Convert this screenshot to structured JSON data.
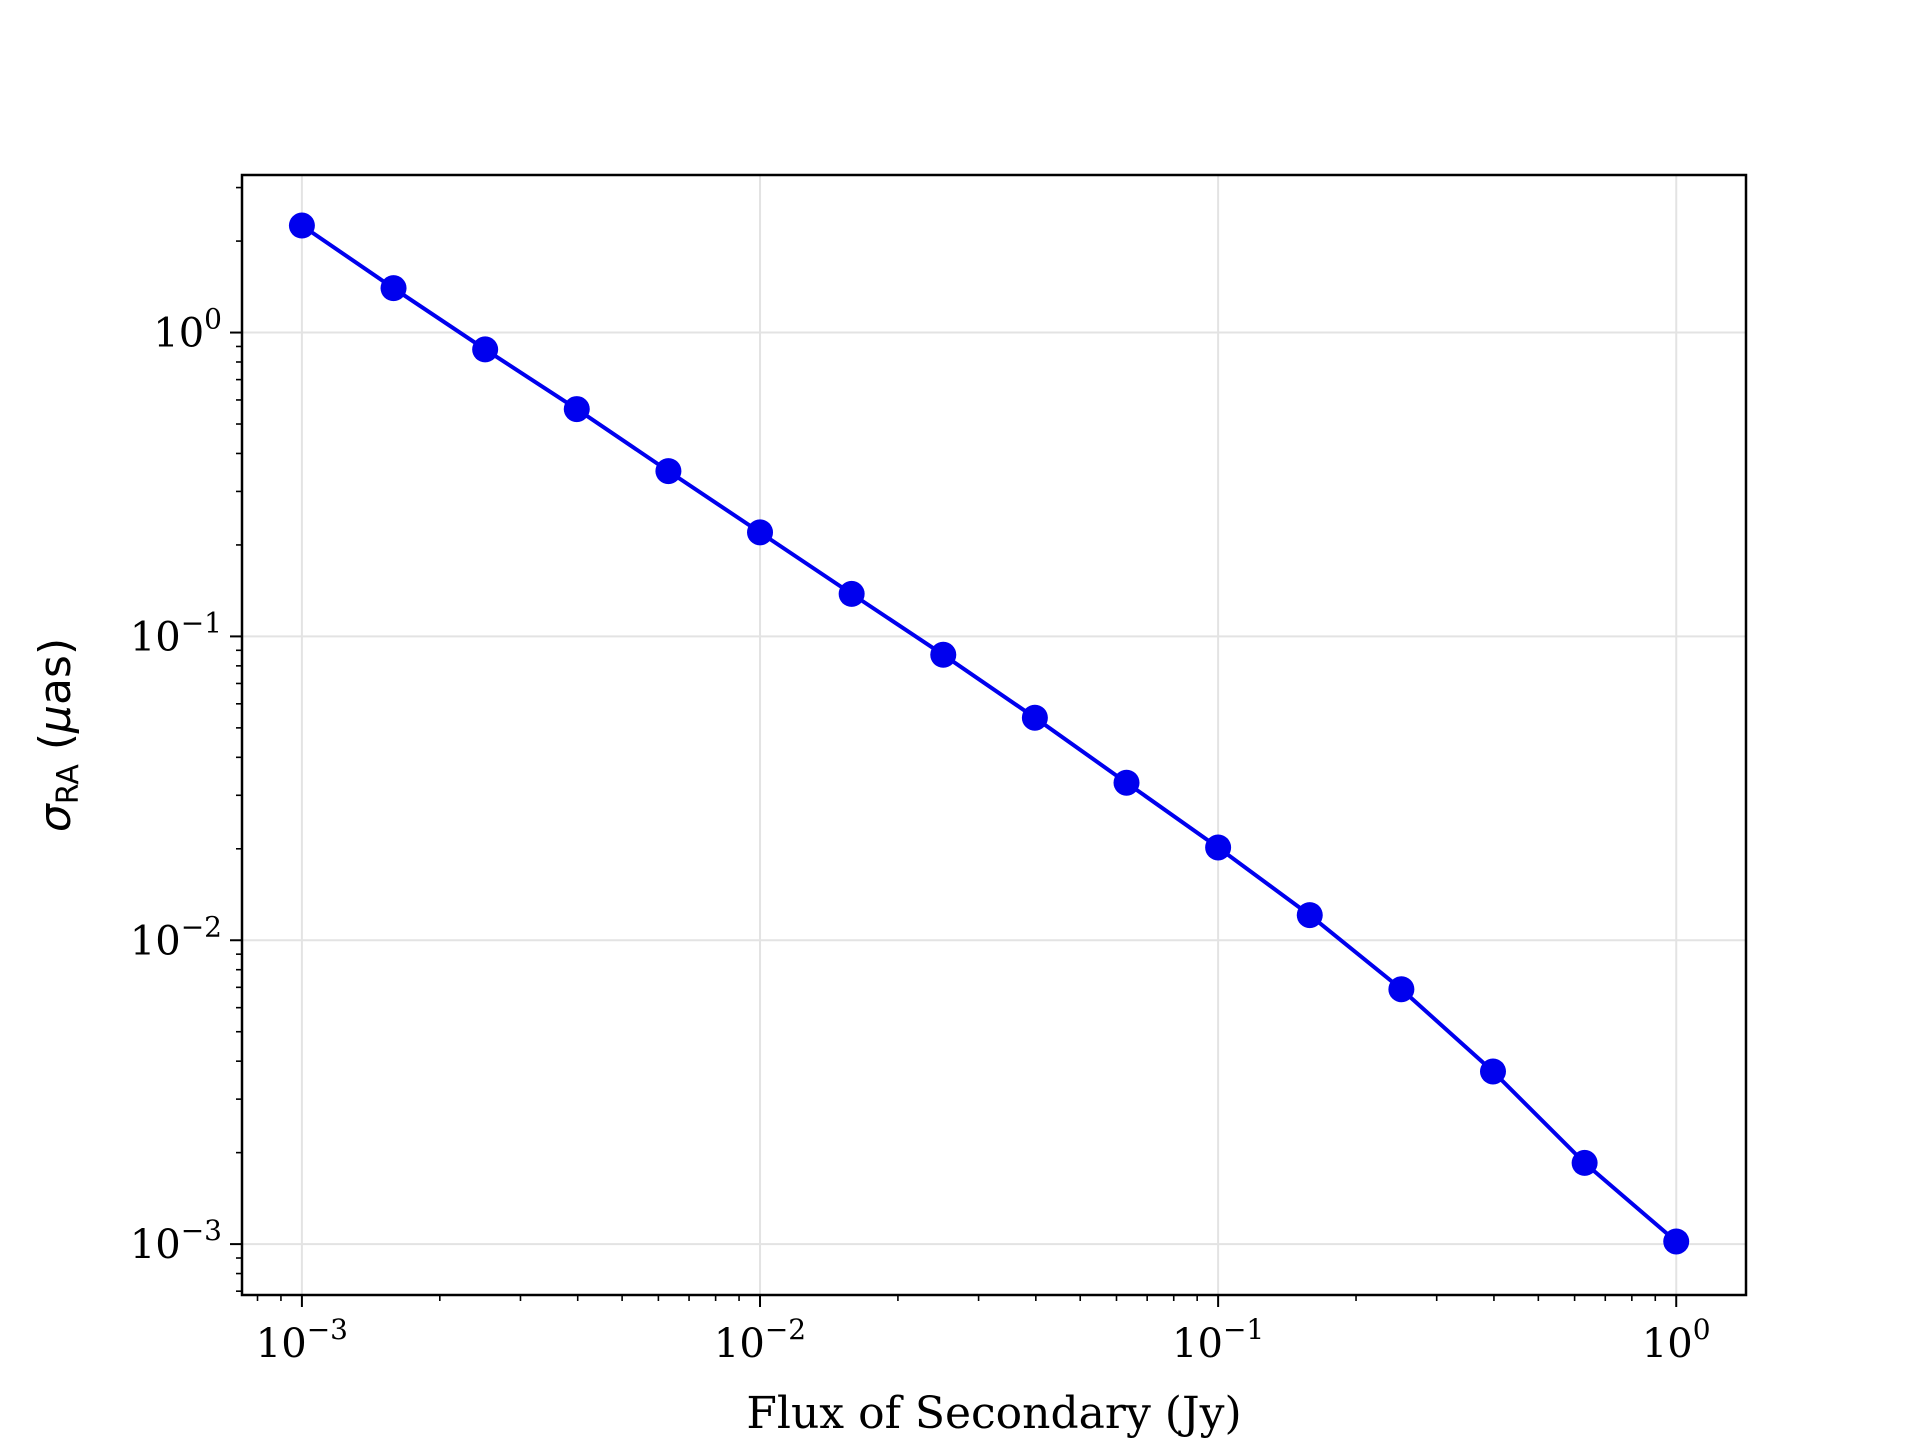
{
  "chart_data": {
    "type": "line",
    "title": "",
    "xlabel": "Flux of Secondary (Jy)",
    "ylabel": {
      "symbol": "σ",
      "subscript": "RA",
      "unit_open": " (",
      "unit_symbol": "μ",
      "unit_rest": "as)"
    },
    "xscale": "log",
    "yscale": "log",
    "xlim": [
      0.00074,
      1.42
    ],
    "ylim": [
      0.00068,
      3.3
    ],
    "grid": true,
    "x_ticks": [
      {
        "value": 0.001,
        "base": "10",
        "exp": "−3"
      },
      {
        "value": 0.01,
        "base": "10",
        "exp": "−2"
      },
      {
        "value": 0.1,
        "base": "10",
        "exp": "−1"
      },
      {
        "value": 1,
        "base": "10",
        "exp": "0"
      }
    ],
    "y_ticks": [
      {
        "value": 0.001,
        "base": "10",
        "exp": "−3"
      },
      {
        "value": 0.01,
        "base": "10",
        "exp": "−2"
      },
      {
        "value": 0.1,
        "base": "10",
        "exp": "−1"
      },
      {
        "value": 1,
        "base": "10",
        "exp": "0"
      }
    ],
    "series": [
      {
        "color": "#0000ee",
        "marker": "circle",
        "x": [
          0.001,
          0.001585,
          0.002512,
          0.003981,
          0.00631,
          0.01,
          0.01585,
          0.02512,
          0.03981,
          0.0631,
          0.1,
          0.1585,
          0.2512,
          0.3981,
          0.631,
          1.0
        ],
        "y": [
          2.25,
          1.4,
          0.88,
          0.56,
          0.35,
          0.22,
          0.138,
          0.087,
          0.054,
          0.033,
          0.0202,
          0.0121,
          0.0069,
          0.0037,
          0.00185,
          0.00102
        ]
      }
    ]
  }
}
